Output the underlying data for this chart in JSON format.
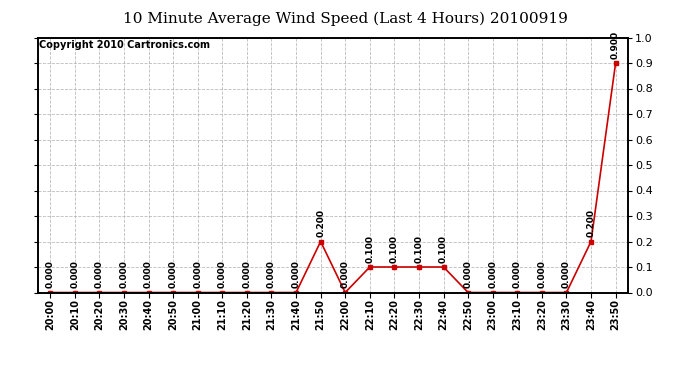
{
  "title": "10 Minute Average Wind Speed (Last 4 Hours) 20100919",
  "copyright": "Copyright 2010 Cartronics.com",
  "x_labels": [
    "20:00",
    "20:10",
    "20:20",
    "20:30",
    "20:40",
    "20:50",
    "21:00",
    "21:10",
    "21:20",
    "21:30",
    "21:40",
    "21:50",
    "22:00",
    "22:10",
    "22:20",
    "22:30",
    "22:40",
    "22:50",
    "23:00",
    "23:10",
    "23:20",
    "23:30",
    "23:40",
    "23:50"
  ],
  "y_values": [
    0.0,
    0.0,
    0.0,
    0.0,
    0.0,
    0.0,
    0.0,
    0.0,
    0.0,
    0.0,
    0.0,
    0.2,
    0.0,
    0.1,
    0.1,
    0.1,
    0.1,
    0.0,
    0.0,
    0.0,
    0.0,
    0.0,
    0.2,
    0.9
  ],
  "line_color": "#cc0000",
  "marker_color": "#cc0000",
  "bg_color": "#ffffff",
  "grid_color": "#aaaaaa",
  "ylim": [
    0.0,
    1.0
  ],
  "yticks": [
    0.0,
    0.1,
    0.2,
    0.3,
    0.4,
    0.5,
    0.6,
    0.7,
    0.8,
    0.9,
    1.0
  ],
  "title_fontsize": 11,
  "copyright_fontsize": 7,
  "annotation_fontsize": 6.5,
  "tick_fontsize": 7
}
